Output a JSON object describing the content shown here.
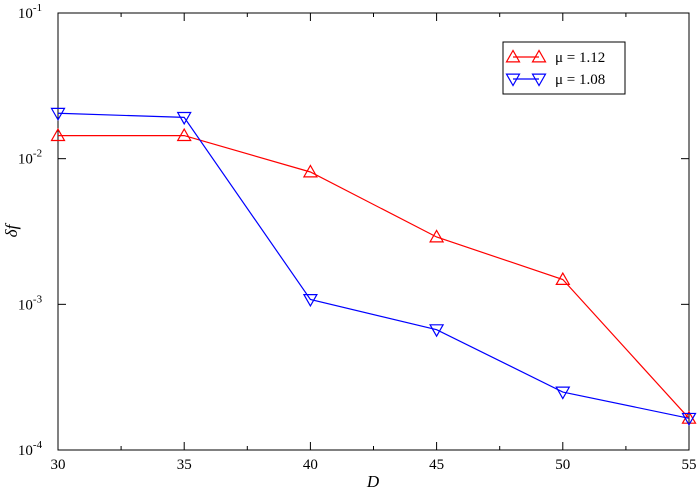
{
  "chart_data": {
    "type": "line",
    "xlabel": "D",
    "ylabel": "δf",
    "xlim": [
      30,
      55
    ],
    "ylim": [
      0.0001,
      0.1
    ],
    "yscale": "log",
    "grid": false,
    "legend_position": "top-right",
    "x_ticks": [
      30,
      35,
      40,
      45,
      50,
      55
    ],
    "x_tick_labels": [
      "30",
      "35",
      "40",
      "45",
      "50",
      "55"
    ],
    "y_ticks": [
      0.0001,
      0.001,
      0.01,
      0.1
    ],
    "y_tick_labels": [
      {
        "base": "10",
        "exp": "-4"
      },
      {
        "base": "10",
        "exp": "-3"
      },
      {
        "base": "10",
        "exp": "-2"
      },
      {
        "base": "10",
        "exp": "-1"
      }
    ],
    "series": [
      {
        "name": "μ = 1.12",
        "color": "#ff0000",
        "marker": "triangle-up",
        "x": [
          30,
          35,
          40,
          45,
          50,
          55
        ],
        "y": [
          0.0144,
          0.0144,
          0.0081,
          0.0029,
          0.00148,
          0.000165
        ]
      },
      {
        "name": "μ = 1.08",
        "color": "#0000ff",
        "marker": "triangle-down",
        "x": [
          30,
          35,
          40,
          45,
          50,
          55
        ],
        "y": [
          0.0205,
          0.0192,
          0.00108,
          0.00067,
          0.00025,
          0.000165
        ]
      }
    ]
  }
}
